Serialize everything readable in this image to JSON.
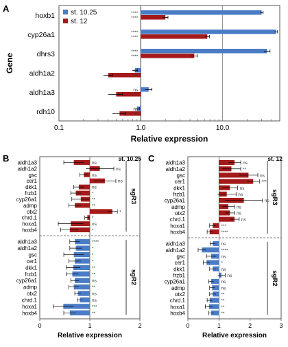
{
  "colors": {
    "blue": "#4a7cc6",
    "red": "#a41a1a",
    "axis": "#555555",
    "grid": "#bbbbbb"
  },
  "chart_data": [
    {
      "panel": "A",
      "type": "bar",
      "orientation": "horizontal",
      "x_scale": "log",
      "xlim": [
        0.1,
        50
      ],
      "xticks": [
        "0.1",
        "1.0",
        "10.0"
      ],
      "xlabel": "Relative expression",
      "ylabel": "Gene",
      "categories": [
        "hoxb1",
        "cyp26a1",
        "dhrs3",
        "aldh1a2",
        "aldh1a3",
        "rdh10"
      ],
      "series": [
        {
          "name": "st. 10.25",
          "color": "blue",
          "values": [
            30,
            45,
            35,
            0.85,
            1.25,
            0.9
          ],
          "errors": [
            1.3,
            2.0,
            3.0,
            0.06,
            0.12,
            0.06
          ]
        },
        {
          "name": "st. 12",
          "color": "red",
          "values": [
            2.0,
            6.5,
            4.5,
            0.4,
            0.5,
            0.55
          ],
          "errors": [
            0.15,
            0.4,
            0.4,
            0.05,
            0.1,
            0.1
          ]
        }
      ],
      "significance": [
        [
          "****",
          "****"
        ],
        [
          "****",
          "****"
        ],
        [
          "****",
          "****"
        ],
        [
          "ns",
          "**"
        ],
        [
          "ns",
          "**"
        ],
        [
          "ns",
          "**"
        ]
      ]
    },
    {
      "panel": "B",
      "type": "bar",
      "orientation": "horizontal",
      "xlim": [
        0,
        2
      ],
      "xticks": [
        "0",
        "1",
        "2"
      ],
      "xlabel": "Relative expression",
      "stage": "st. 10.25",
      "groups": [
        {
          "name": "sgR3",
          "color": "red",
          "categories": [
            "aldh1a3",
            "aldh1a2",
            "gsc",
            "cer1",
            "dkk1",
            "frzb1",
            "cyp26a1",
            "admp",
            "otx2",
            "chrd.1",
            "hoxa1",
            "hoxb4"
          ],
          "values": [
            0.68,
            1.2,
            0.88,
            1.3,
            0.78,
            0.72,
            0.82,
            0.7,
            1.45,
            0.95,
            0.62,
            0.6
          ],
          "errors": [
            0.2,
            0.28,
            0.08,
            0.22,
            0.1,
            0.1,
            0.18,
            0.12,
            0.1,
            0.05,
            0.25,
            0.18
          ],
          "significance": [
            "ns",
            "ns",
            "ns",
            "ns",
            "ns",
            "*",
            "**",
            "**",
            "*",
            "*",
            "ns",
            "*"
          ]
        },
        {
          "name": "sgR2",
          "color": "blue",
          "categories": [
            "aldh1a3",
            "aldh1a2",
            "gsc",
            "cer1",
            "dkk1",
            "frzb1",
            "cyp26a1",
            "admp",
            "otx2",
            "chrd.1",
            "hoxa1",
            "hoxb4"
          ],
          "values": [
            0.7,
            0.72,
            0.68,
            0.7,
            0.67,
            0.65,
            0.7,
            0.68,
            0.76,
            0.8,
            0.47,
            0.6
          ],
          "errors": [
            0.1,
            0.12,
            0.2,
            0.12,
            0.14,
            0.12,
            0.08,
            0.1,
            0.06,
            0.05,
            0.2,
            0.12
          ],
          "significance": [
            "****",
            "*",
            "*",
            "*",
            "**",
            "**",
            "ns",
            "**",
            "ns",
            "ns",
            "***",
            "**"
          ]
        }
      ]
    },
    {
      "panel": "C",
      "type": "bar",
      "orientation": "horizontal",
      "xlim": [
        0,
        3
      ],
      "xticks": [
        "0",
        "1",
        "2",
        "3"
      ],
      "xlabel": "Relative expression",
      "stage": "st. 12",
      "groups": [
        {
          "name": "sgR3",
          "color": "red",
          "categories": [
            "aldh1a3",
            "aldh1a2",
            "gsc",
            "cer1",
            "dkk1",
            "frzb1",
            "cyp26a1",
            "admp",
            "otx2",
            "chrd.1",
            "hoxa1",
            "hoxb4"
          ],
          "values": [
            1.5,
            1.4,
            1.95,
            2.1,
            1.35,
            1.25,
            1.8,
            1.3,
            1.35,
            1.5,
            0.8,
            0.7
          ],
          "errors": [
            0.2,
            0.3,
            0.3,
            0.2,
            0.25,
            0.3,
            0.6,
            0.2,
            0.15,
            0.15,
            0.1,
            0.08
          ],
          "significance": [
            "ns",
            "**",
            "ns",
            "***",
            "ns",
            "ns",
            "ns",
            "ns",
            "ns",
            "ns",
            "***",
            "****"
          ]
        },
        {
          "name": "sgR2",
          "color": "blue",
          "categories": [
            "aldh1a3",
            "aldh1a2",
            "gsc",
            "cer1",
            "dkk1",
            "frzb1",
            "cyp26a1",
            "admp",
            "otx2",
            "chrd.1",
            "hoxa1",
            "hoxb4"
          ],
          "values": [
            0.8,
            0.45,
            0.75,
            0.6,
            0.8,
            1.08,
            0.75,
            0.78,
            0.8,
            0.7,
            0.68,
            0.75
          ],
          "errors": [
            0.08,
            0.12,
            0.15,
            0.1,
            0.1,
            0.12,
            0.08,
            0.08,
            0.1,
            0.08,
            0.12,
            0.08
          ],
          "significance": [
            "ns",
            "****",
            "ns",
            "*",
            "ns",
            "ns",
            "ns",
            "ns",
            "**",
            "**",
            "**",
            "**"
          ]
        }
      ]
    }
  ]
}
